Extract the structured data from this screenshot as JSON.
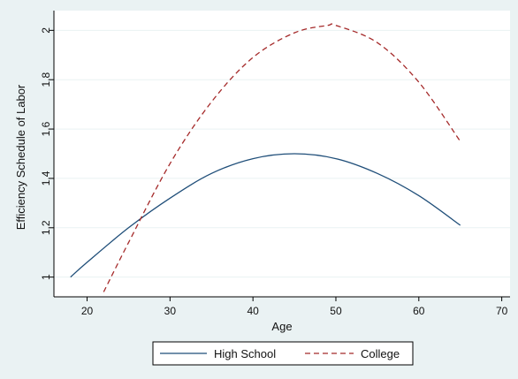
{
  "chart_data": {
    "type": "line",
    "title": "",
    "xlabel": "Age",
    "ylabel": "Efficiency Schedule of Labor",
    "xlim": [
      16,
      71
    ],
    "ylim": [
      0.92,
      2.08
    ],
    "x_ticks": [
      20,
      30,
      40,
      50,
      60,
      70
    ],
    "y_ticks": [
      1,
      1.2,
      1.4,
      1.6,
      1.8,
      2
    ],
    "grid": "horizontal",
    "legend_position": "bottom",
    "series": [
      {
        "name": "High School",
        "style": "solid",
        "color": "#1f4e79",
        "points": [
          [
            18,
            1.0
          ],
          [
            20,
            1.06
          ],
          [
            25,
            1.2
          ],
          [
            30,
            1.32
          ],
          [
            35,
            1.42
          ],
          [
            40,
            1.48
          ],
          [
            45,
            1.5
          ],
          [
            50,
            1.48
          ],
          [
            55,
            1.42
          ],
          [
            60,
            1.33
          ],
          [
            65,
            1.21
          ]
        ]
      },
      {
        "name": "College",
        "style": "dashed",
        "color": "#a52a2a",
        "points": [
          [
            22,
            0.94
          ],
          [
            25,
            1.14
          ],
          [
            30,
            1.46
          ],
          [
            35,
            1.71
          ],
          [
            40,
            1.89
          ],
          [
            45,
            1.99
          ],
          [
            49,
            2.02
          ],
          [
            50,
            2.02
          ],
          [
            55,
            1.95
          ],
          [
            60,
            1.79
          ],
          [
            65,
            1.55
          ]
        ]
      }
    ]
  },
  "colors": {
    "background": "#eaf2f3",
    "plot_background": "#ffffff",
    "grid": "#eaf2f3"
  }
}
